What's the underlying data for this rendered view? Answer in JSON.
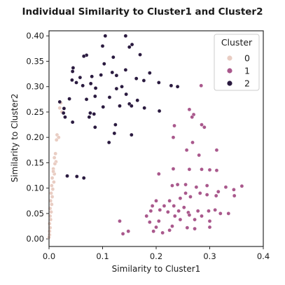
{
  "chart_data": {
    "type": "scatter",
    "title": "Individual Similarity to Cluster1 and Cluster2",
    "xlabel": "Similarity to Cluster1",
    "ylabel": "Similarity to Cluster2",
    "xlim": [
      0.0,
      0.4
    ],
    "ylim": [
      -0.015,
      0.41
    ],
    "xticks": [
      "0.0",
      "0.1",
      "0.2",
      "0.3",
      "0.4"
    ],
    "xtick_values": [
      0.0,
      0.1,
      0.2,
      0.3,
      0.4
    ],
    "yticks": [
      "0.00",
      "0.05",
      "0.10",
      "0.15",
      "0.20",
      "0.25",
      "0.30",
      "0.35",
      "0.40"
    ],
    "ytick_values": [
      0.0,
      0.05,
      0.1,
      0.15,
      0.2,
      0.25,
      0.3,
      0.35,
      0.4
    ],
    "grid": false,
    "legend": {
      "title": "Cluster",
      "placement": "top-right",
      "entries": [
        {
          "label": "0",
          "color": "#e9cdc3"
        },
        {
          "label": "1",
          "color": "#a9588c"
        },
        {
          "label": "2",
          "color": "#2a1a3f"
        }
      ]
    },
    "series": [
      {
        "name": "0",
        "color": "#e9cdc3",
        "points": [
          [
            0.022,
            0.268
          ],
          [
            0.02,
            0.258
          ],
          [
            0.024,
            0.25
          ],
          [
            0.015,
            0.205
          ],
          [
            0.018,
            0.2
          ],
          [
            0.014,
            0.195
          ],
          [
            0.012,
            0.168
          ],
          [
            0.01,
            0.16
          ],
          [
            0.013,
            0.152
          ],
          [
            0.008,
            0.138
          ],
          [
            0.01,
            0.128
          ],
          [
            0.006,
            0.12
          ],
          [
            0.009,
            0.112
          ],
          [
            0.005,
            0.105
          ],
          [
            0.007,
            0.098
          ],
          [
            0.004,
            0.09
          ],
          [
            0.006,
            0.083
          ],
          [
            0.003,
            0.075
          ],
          [
            0.005,
            0.068
          ],
          [
            0.002,
            0.06
          ],
          [
            0.004,
            0.053
          ],
          [
            0.002,
            0.045
          ],
          [
            0.003,
            0.038
          ],
          [
            0.001,
            0.03
          ],
          [
            0.002,
            0.022
          ],
          [
            0.001,
            0.015
          ],
          [
            0.001,
            0.008
          ],
          [
            0.0,
            0.003
          ],
          [
            0.011,
            0.148
          ],
          [
            0.008,
            0.133
          ]
        ]
      },
      {
        "name": "1",
        "color": "#a9588c",
        "points": [
          [
            0.284,
            0.302
          ],
          [
            0.262,
            0.255
          ],
          [
            0.27,
            0.245
          ],
          [
            0.267,
            0.24
          ],
          [
            0.285,
            0.225
          ],
          [
            0.29,
            0.22
          ],
          [
            0.234,
            0.223
          ],
          [
            0.232,
            0.2
          ],
          [
            0.268,
            0.19
          ],
          [
            0.257,
            0.175
          ],
          [
            0.28,
            0.165
          ],
          [
            0.313,
            0.175
          ],
          [
            0.232,
            0.138
          ],
          [
            0.262,
            0.137
          ],
          [
            0.285,
            0.137
          ],
          [
            0.3,
            0.136
          ],
          [
            0.313,
            0.135
          ],
          [
            0.205,
            0.128
          ],
          [
            0.23,
            0.105
          ],
          [
            0.24,
            0.107
          ],
          [
            0.255,
            0.107
          ],
          [
            0.275,
            0.102
          ],
          [
            0.295,
            0.105
          ],
          [
            0.33,
            0.102
          ],
          [
            0.345,
            0.097
          ],
          [
            0.36,
            0.104
          ],
          [
            0.316,
            0.093
          ],
          [
            0.255,
            0.09
          ],
          [
            0.282,
            0.09
          ],
          [
            0.295,
            0.087
          ],
          [
            0.312,
            0.085
          ],
          [
            0.2,
            0.075
          ],
          [
            0.225,
            0.075
          ],
          [
            0.245,
            0.08
          ],
          [
            0.264,
            0.083
          ],
          [
            0.346,
            0.085
          ],
          [
            0.193,
            0.065
          ],
          [
            0.215,
            0.065
          ],
          [
            0.233,
            0.065
          ],
          [
            0.252,
            0.062
          ],
          [
            0.19,
            0.055
          ],
          [
            0.207,
            0.057
          ],
          [
            0.222,
            0.053
          ],
          [
            0.242,
            0.055
          ],
          [
            0.26,
            0.052
          ],
          [
            0.278,
            0.055
          ],
          [
            0.298,
            0.055
          ],
          [
            0.31,
            0.057
          ],
          [
            0.182,
            0.045
          ],
          [
            0.235,
            0.045
          ],
          [
            0.262,
            0.047
          ],
          [
            0.285,
            0.045
          ],
          [
            0.32,
            0.05
          ],
          [
            0.335,
            0.05
          ],
          [
            0.188,
            0.033
          ],
          [
            0.205,
            0.035
          ],
          [
            0.245,
            0.038
          ],
          [
            0.272,
            0.038
          ],
          [
            0.3,
            0.035
          ],
          [
            0.132,
            0.035
          ],
          [
            0.2,
            0.023
          ],
          [
            0.23,
            0.025
          ],
          [
            0.258,
            0.022
          ],
          [
            0.272,
            0.02
          ],
          [
            0.3,
            0.023
          ],
          [
            0.195,
            0.015
          ],
          [
            0.212,
            0.012
          ],
          [
            0.225,
            0.017
          ],
          [
            0.148,
            0.015
          ],
          [
            0.138,
            0.01
          ]
        ]
      },
      {
        "name": "2",
        "color": "#2a1a3f",
        "points": [
          [
            0.105,
            0.4
          ],
          [
            0.143,
            0.4
          ],
          [
            0.155,
            0.383
          ],
          [
            0.1,
            0.38
          ],
          [
            0.15,
            0.378
          ],
          [
            0.07,
            0.362
          ],
          [
            0.065,
            0.36
          ],
          [
            0.17,
            0.363
          ],
          [
            0.12,
            0.358
          ],
          [
            0.103,
            0.345
          ],
          [
            0.045,
            0.337
          ],
          [
            0.143,
            0.333
          ],
          [
            0.044,
            0.33
          ],
          [
            0.118,
            0.328
          ],
          [
            0.126,
            0.322
          ],
          [
            0.188,
            0.327
          ],
          [
            0.058,
            0.318
          ],
          [
            0.08,
            0.32
          ],
          [
            0.097,
            0.323
          ],
          [
            0.163,
            0.316
          ],
          [
            0.043,
            0.313
          ],
          [
            0.051,
            0.308
          ],
          [
            0.078,
            0.306
          ],
          [
            0.177,
            0.312
          ],
          [
            0.063,
            0.302
          ],
          [
            0.087,
            0.297
          ],
          [
            0.136,
            0.3
          ],
          [
            0.205,
            0.308
          ],
          [
            0.126,
            0.296
          ],
          [
            0.228,
            0.302
          ],
          [
            0.24,
            0.3
          ],
          [
            0.086,
            0.281
          ],
          [
            0.144,
            0.285
          ],
          [
            0.038,
            0.276
          ],
          [
            0.113,
            0.279
          ],
          [
            0.07,
            0.275
          ],
          [
            0.165,
            0.273
          ],
          [
            0.02,
            0.27
          ],
          [
            0.028,
            0.257
          ],
          [
            0.132,
            0.262
          ],
          [
            0.15,
            0.266
          ],
          [
            0.154,
            0.262
          ],
          [
            0.101,
            0.26
          ],
          [
            0.178,
            0.258
          ],
          [
            0.206,
            0.252
          ],
          [
            0.027,
            0.248
          ],
          [
            0.077,
            0.248
          ],
          [
            0.03,
            0.24
          ],
          [
            0.084,
            0.246
          ],
          [
            0.044,
            0.23
          ],
          [
            0.124,
            0.225
          ],
          [
            0.122,
            0.208
          ],
          [
            0.086,
            0.22
          ],
          [
            0.154,
            0.205
          ],
          [
            0.112,
            0.19
          ],
          [
            0.034,
            0.124
          ],
          [
            0.052,
            0.123
          ],
          [
            0.065,
            0.12
          ],
          [
            0.075,
            0.24
          ]
        ]
      }
    ]
  }
}
